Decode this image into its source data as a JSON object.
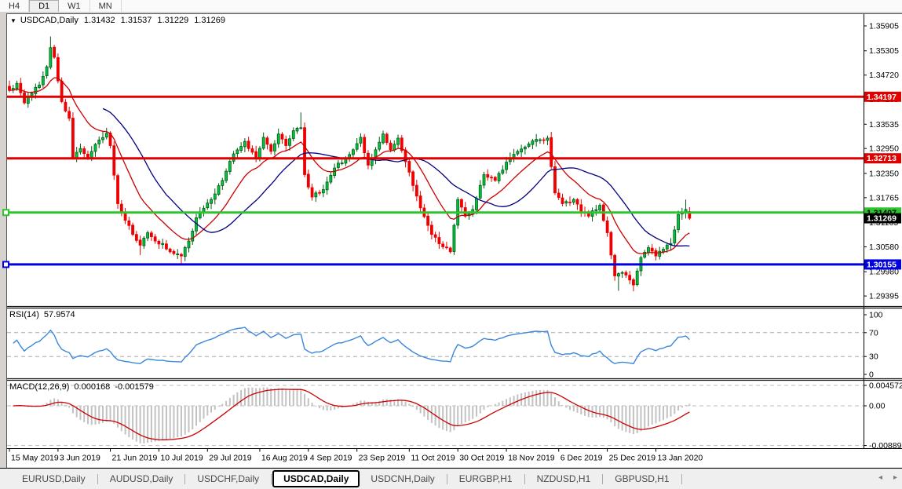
{
  "toolbar": {
    "timeframes": [
      {
        "label": "H4",
        "active": false
      },
      {
        "label": "D1",
        "active": true
      },
      {
        "label": "W1",
        "active": false
      },
      {
        "label": "MN",
        "active": false
      }
    ]
  },
  "chart": {
    "header": {
      "collapse_icon": "▼",
      "symbol": "USDCAD,Daily",
      "open": "1.31432",
      "high": "1.31537",
      "low": "1.31229",
      "close": "1.31269"
    },
    "rsi_header": {
      "label": "RSI(14)",
      "value": "57.9574"
    },
    "macd_header": {
      "label": "MACD(12,26,9)",
      "value1": "0.000168",
      "value2": "-0.001579"
    }
  },
  "chart_data": {
    "type": "candlestick",
    "symbol": "USDCAD",
    "timeframe": "Daily",
    "ohlc_last": {
      "open": 1.31432,
      "high": 1.31537,
      "low": 1.31229,
      "close": 1.31269
    },
    "ylim": [
      1.2917,
      1.36189
    ],
    "y_axis": {
      "decimals": 5,
      "ticks": [
        1.35905,
        1.35305,
        1.3472,
        1.34135,
        1.33535,
        1.3295,
        1.3235,
        1.31765,
        1.31165,
        1.3058,
        1.2998,
        1.29395
      ]
    },
    "x_axis": {
      "labels": [
        {
          "text": "15 May 2019",
          "bar": 0
        },
        {
          "text": "3 Jun 2019",
          "bar": 13
        },
        {
          "text": "21 Jun 2019",
          "bar": 27
        },
        {
          "text": "10 Jul 2019",
          "bar": 40
        },
        {
          "text": "29 Jul 2019",
          "bar": 53
        },
        {
          "text": "16 Aug 2019",
          "bar": 67
        },
        {
          "text": "4 Sep 2019",
          "bar": 80
        },
        {
          "text": "23 Sep 2019",
          "bar": 93
        },
        {
          "text": "11 Oct 2019",
          "bar": 107
        },
        {
          "text": "30 Oct 2019",
          "bar": 120
        },
        {
          "text": "18 Nov 2019",
          "bar": 133
        },
        {
          "text": "6 Dec 2019",
          "bar": 147
        },
        {
          "text": "25 Dec 2019",
          "bar": 160
        },
        {
          "text": "13 Jan 2020",
          "bar": 173
        }
      ]
    },
    "price_lines": [
      {
        "value": 1.34197,
        "color": "#E00000",
        "text_color": "#FFFFFF",
        "handle": false
      },
      {
        "value": 1.32713,
        "color": "#E00000",
        "text_color": "#FFFFFF",
        "handle": false
      },
      {
        "value": 1.31407,
        "color": "#2FC42F",
        "text_color": "#000000",
        "handle": true
      },
      {
        "value": 1.30155,
        "color": "#0000E0",
        "text_color": "#FFFFFF",
        "handle": true
      }
    ],
    "current_price": {
      "value": 1.31269,
      "bg": "#000000",
      "fg": "#FFFFFF"
    },
    "candles": {
      "count": 183,
      "bull_fill": "#00C53E",
      "bull_stroke": "#005A14",
      "bear_fill": "#EE0000",
      "bear_stroke": "#EE0000",
      "anchors": [
        [
          0,
          1.3435
        ],
        [
          2,
          1.3452
        ],
        [
          4,
          1.3405
        ],
        [
          6,
          1.3428
        ],
        [
          8,
          1.3448
        ],
        [
          10,
          1.3492
        ],
        [
          11,
          1.3538
        ],
        [
          12,
          1.3515
        ],
        [
          13,
          1.3458
        ],
        [
          14,
          1.3408
        ],
        [
          16,
          1.3368
        ],
        [
          17,
          1.3272
        ],
        [
          19,
          1.3295
        ],
        [
          21,
          1.3272
        ],
        [
          23,
          1.3305
        ],
        [
          26,
          1.3332
        ],
        [
          27,
          1.3302
        ],
        [
          29,
          1.3162
        ],
        [
          31,
          1.3122
        ],
        [
          33,
          1.3088
        ],
        [
          35,
          1.3062
        ],
        [
          37,
          1.3092
        ],
        [
          39,
          1.3072
        ],
        [
          41,
          1.3066
        ],
        [
          43,
          1.3046
        ],
        [
          46,
          1.3036
        ],
        [
          48,
          1.3072
        ],
        [
          50,
          1.3128
        ],
        [
          54,
          1.3172
        ],
        [
          57,
          1.3218
        ],
        [
          60,
          1.3282
        ],
        [
          63,
          1.3312
        ],
        [
          66,
          1.3272
        ],
        [
          68,
          1.3322
        ],
        [
          70,
          1.3288
        ],
        [
          72,
          1.333
        ],
        [
          74,
          1.3302
        ],
        [
          76,
          1.3338
        ],
        [
          78,
          1.3345
        ],
        [
          79,
          1.3232
        ],
        [
          81,
          1.3178
        ],
        [
          84,
          1.3196
        ],
        [
          87,
          1.3248
        ],
        [
          90,
          1.3272
        ],
        [
          92,
          1.3292
        ],
        [
          94,
          1.3322
        ],
        [
          96,
          1.3255
        ],
        [
          98,
          1.3292
        ],
        [
          100,
          1.333
        ],
        [
          102,
          1.3292
        ],
        [
          104,
          1.332
        ],
        [
          107,
          1.3238
        ],
        [
          110,
          1.3152
        ],
        [
          113,
          1.3088
        ],
        [
          116,
          1.3058
        ],
        [
          118,
          1.3046
        ],
        [
          120,
          1.3172
        ],
        [
          122,
          1.3132
        ],
        [
          124,
          1.3148
        ],
        [
          127,
          1.3232
        ],
        [
          130,
          1.3218
        ],
        [
          133,
          1.3262
        ],
        [
          136,
          1.3288
        ],
        [
          139,
          1.3306
        ],
        [
          142,
          1.3316
        ],
        [
          144,
          1.332
        ],
        [
          146,
          1.3188
        ],
        [
          148,
          1.3162
        ],
        [
          151,
          1.3172
        ],
        [
          153,
          1.3142
        ],
        [
          155,
          1.3132
        ],
        [
          158,
          1.3158
        ],
        [
          160,
          1.3092
        ],
        [
          162,
          1.2988
        ],
        [
          164,
          1.2996
        ],
        [
          166,
          1.2978
        ],
        [
          167,
          1.2966
        ],
        [
          169,
          1.3032
        ],
        [
          171,
          1.3056
        ],
        [
          173,
          1.3036
        ],
        [
          175,
          1.3052
        ],
        [
          177,
          1.3066
        ],
        [
          179,
          1.3136
        ],
        [
          181,
          1.3148
        ],
        [
          182,
          1.31269
        ]
      ],
      "wick_overrides": {
        "11": [
          1.3565,
          null
        ],
        "35": [
          null,
          1.3038
        ],
        "46": [
          null,
          1.3016
        ],
        "78": [
          1.3382,
          null
        ],
        "118": [
          null,
          1.3042
        ],
        "163": [
          null,
          1.2952
        ],
        "167": [
          null,
          1.2951
        ],
        "181": [
          1.3172,
          null
        ]
      }
    },
    "moving_averages": [
      {
        "type": "ema",
        "period": 14,
        "color": "#CC0000"
      },
      {
        "type": "sma",
        "period": 26,
        "color": "#000080"
      }
    ],
    "rsi": {
      "period": 14,
      "current": 57.9574,
      "color": "#3A87DB",
      "levels": [
        100,
        70,
        30,
        0
      ],
      "dashed_levels": [
        70,
        30
      ]
    },
    "macd": {
      "fast": 12,
      "slow": 26,
      "signal": 9,
      "current_macd": 0.000168,
      "current_signal": -0.001579,
      "axis_labels": [
        "0.004572",
        "0.00",
        "-0.008893"
      ],
      "axis_values": [
        0.004572,
        0.0,
        -0.008893
      ],
      "histogram_color": "#C2C2C2",
      "signal_color": "#CC0000"
    }
  },
  "tabbar": {
    "tabs": [
      {
        "label": "EURUSD,Daily",
        "active": false
      },
      {
        "label": "AUDUSD,Daily",
        "active": false
      },
      {
        "label": "USDCHF,Daily",
        "active": false
      },
      {
        "label": "USDCAD,Daily",
        "active": true
      },
      {
        "label": "USDCNH,Daily",
        "active": false
      },
      {
        "label": "EURGBP,H1",
        "active": false
      },
      {
        "label": "NZDUSD,H1",
        "active": false
      },
      {
        "label": "GBPUSD,H1",
        "active": false
      }
    ],
    "scroll_left_icon": "◂",
    "scroll_right_icon": "▸"
  }
}
